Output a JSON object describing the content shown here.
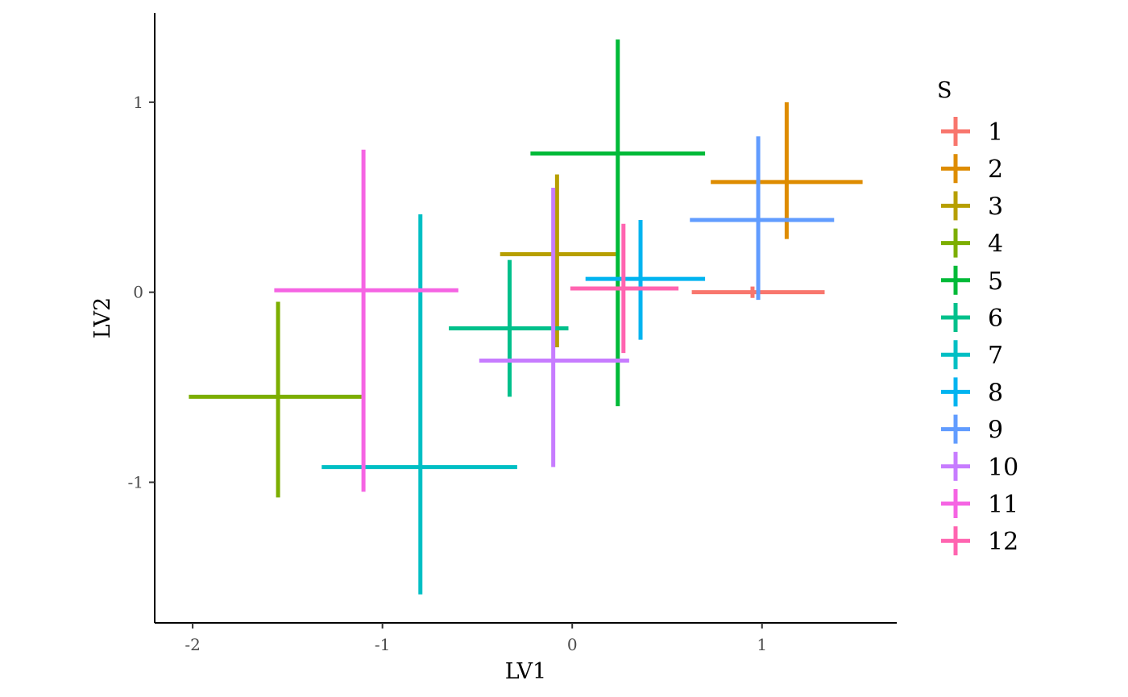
{
  "chart_data": {
    "type": "scatter",
    "title": "",
    "xlabel": "LV1",
    "ylabel": "LV2",
    "legend_title": "S",
    "legend_position": "right",
    "grid": false,
    "xlim": [
      -2.2,
      1.71
    ],
    "ylim": [
      -1.74,
      1.47
    ],
    "x_ticks": [
      -2,
      -1,
      0,
      1
    ],
    "x_tick_labels": [
      "-2",
      "-1",
      "0",
      "1"
    ],
    "y_ticks": [
      -1,
      0,
      1
    ],
    "y_tick_labels": [
      "-1",
      "0",
      "1"
    ],
    "series": [
      {
        "name": "1",
        "color": "#F8766D",
        "x": 0.95,
        "y": 0.0,
        "xmin": 0.63,
        "xmax": 1.33,
        "ymin": -0.03,
        "ymax": 0.03
      },
      {
        "name": "2",
        "color": "#DE8C00",
        "x": 1.13,
        "y": 0.58,
        "xmin": 0.73,
        "xmax": 1.53,
        "ymin": 0.28,
        "ymax": 1.0
      },
      {
        "name": "3",
        "color": "#B79F00",
        "x": -0.08,
        "y": 0.2,
        "xmin": -0.38,
        "xmax": 0.23,
        "ymin": -0.29,
        "ymax": 0.62
      },
      {
        "name": "4",
        "color": "#7CAE00",
        "x": -1.55,
        "y": -0.55,
        "xmin": -2.02,
        "xmax": -1.11,
        "ymin": -1.08,
        "ymax": -0.05
      },
      {
        "name": "5",
        "color": "#00BA38",
        "x": 0.24,
        "y": 0.73,
        "xmin": -0.22,
        "xmax": 0.7,
        "ymin": -0.6,
        "ymax": 1.33
      },
      {
        "name": "6",
        "color": "#00C08B",
        "x": -0.33,
        "y": -0.19,
        "xmin": -0.65,
        "xmax": -0.02,
        "ymin": -0.55,
        "ymax": 0.17
      },
      {
        "name": "7",
        "color": "#00BFC4",
        "x": -0.8,
        "y": -0.92,
        "xmin": -1.32,
        "xmax": -0.29,
        "ymin": -1.59,
        "ymax": 0.41
      },
      {
        "name": "8",
        "color": "#00B4F0",
        "x": 0.36,
        "y": 0.07,
        "xmin": 0.07,
        "xmax": 0.7,
        "ymin": -0.25,
        "ymax": 0.38
      },
      {
        "name": "9",
        "color": "#619CFF",
        "x": 0.98,
        "y": 0.38,
        "xmin": 0.62,
        "xmax": 1.38,
        "ymin": -0.04,
        "ymax": 0.82
      },
      {
        "name": "10",
        "color": "#C77CFF",
        "x": -0.1,
        "y": -0.36,
        "xmin": -0.49,
        "xmax": 0.3,
        "ymin": -0.92,
        "ymax": 0.55
      },
      {
        "name": "11",
        "color": "#F564E3",
        "x": -1.1,
        "y": 0.01,
        "xmin": -1.57,
        "xmax": -0.6,
        "ymin": -1.05,
        "ymax": 0.75
      },
      {
        "name": "12",
        "color": "#FF64B0",
        "x": 0.27,
        "y": 0.02,
        "xmin": -0.01,
        "xmax": 0.56,
        "ymin": -0.32,
        "ymax": 0.36
      }
    ]
  }
}
